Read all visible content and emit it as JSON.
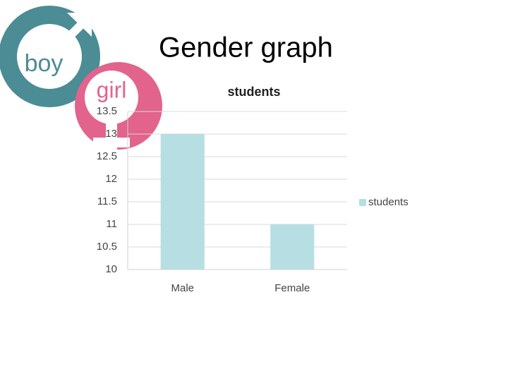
{
  "slide_title": "Gender graph",
  "icons": {
    "boy": "boy",
    "girl": "girl"
  },
  "chart_data": {
    "type": "bar",
    "title": "students",
    "categories": [
      "Male",
      "Female"
    ],
    "series": [
      {
        "name": "students",
        "color": "#b7dfe3",
        "values": [
          13,
          11
        ]
      }
    ],
    "ylim": [
      10,
      13.5
    ],
    "yticks": [
      10,
      10.5,
      11,
      11.5,
      12,
      12.5,
      13,
      13.5
    ],
    "grid": true,
    "legend": "right"
  }
}
